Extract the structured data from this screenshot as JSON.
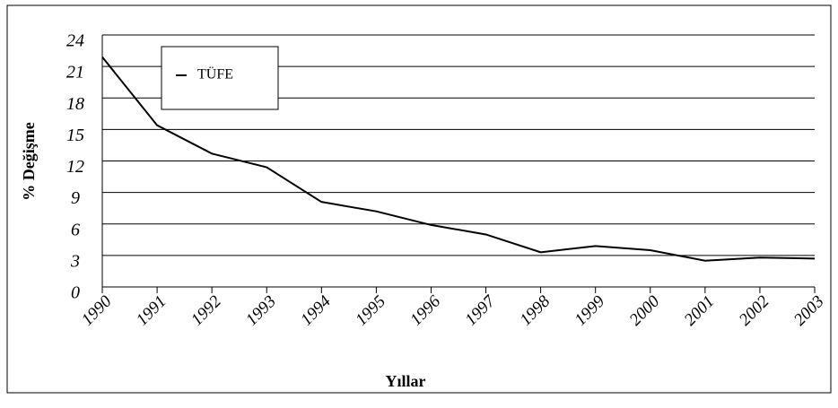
{
  "chart_data": {
    "type": "line",
    "categories": [
      "1990",
      "1991",
      "1992",
      "1993",
      "1994",
      "1995",
      "1996",
      "1997",
      "1998",
      "1999",
      "2000",
      "2001",
      "2002",
      "2003"
    ],
    "series": [
      {
        "name": "TÜFE",
        "color": "#000000",
        "values": [
          21.9,
          15.4,
          12.7,
          11.4,
          8.1,
          7.2,
          5.9,
          5.0,
          3.3,
          3.9,
          3.5,
          2.5,
          2.8,
          2.7
        ]
      }
    ],
    "ylim": [
      0,
      24
    ],
    "yticks": [
      0,
      3,
      6,
      9,
      12,
      15,
      18,
      21,
      24
    ],
    "ylabel": "% Değişme",
    "xlabel": "Yıllar",
    "grid": true,
    "legend": "top-left"
  }
}
